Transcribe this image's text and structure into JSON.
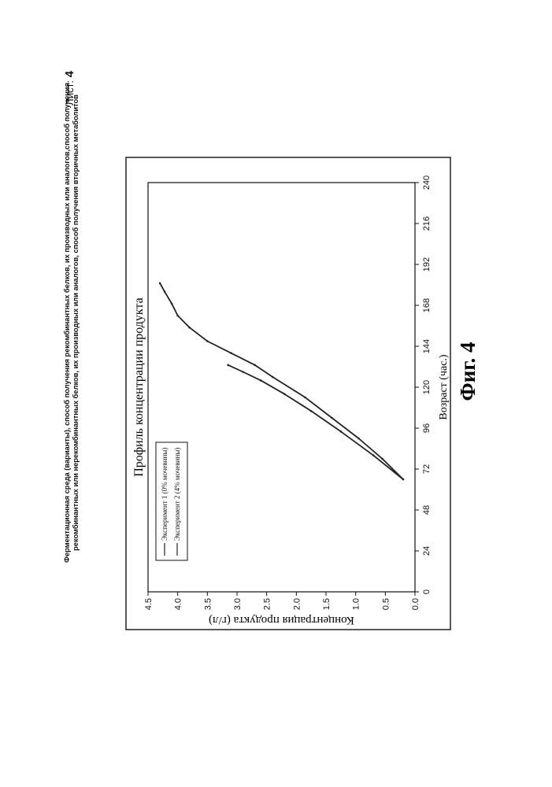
{
  "header": {
    "line1": "Ферментационная среда (варианты), способ получения рекомбинантных белков, их производных или аналогов,способ получения",
    "line2": "рекомбинантных или нерекомбинантных белков, их производных или аналогов, способ получения вторичных метаболитов",
    "sheet_label": "Лист:",
    "sheet_number": "4"
  },
  "figure_caption": "Фиг. 4",
  "chart_data": {
    "type": "line",
    "title": "Профиль концентрации продукта",
    "xlabel": "Возраст (час.)",
    "ylabel": "Концентрация продукта (г/л)",
    "xlim": [
      0,
      240
    ],
    "ylim": [
      0,
      4.5
    ],
    "x_ticks": [
      "0",
      "24",
      "48",
      "72",
      "96",
      "120",
      "144",
      "168",
      "192",
      "216",
      "240"
    ],
    "y_ticks": [
      "0.0",
      "0.5",
      "1.0",
      "1.5",
      "2.0",
      "2.5",
      "3.0",
      "3.5",
      "4.0",
      "4.5"
    ],
    "grid": false,
    "legend_position": "bottom-left",
    "series": [
      {
        "name": "Эксперимент 1 (0% мочевины)",
        "color": "#222222",
        "points": [
          [
            66,
            0.2
          ],
          [
            78,
            0.55
          ],
          [
            90,
            0.95
          ],
          [
            102,
            1.4
          ],
          [
            114,
            1.85
          ],
          [
            126,
            2.4
          ],
          [
            133,
            2.7
          ],
          [
            140,
            3.1
          ],
          [
            147,
            3.5
          ],
          [
            155,
            3.8
          ],
          [
            162,
            4.0
          ],
          [
            169,
            4.1
          ],
          [
            176,
            4.22
          ],
          [
            181,
            4.3
          ]
        ]
      },
      {
        "name": "Эксперимент 2 (4% мочевины)",
        "color": "#222222",
        "points": [
          [
            66,
            0.2
          ],
          [
            80,
            0.7
          ],
          [
            94,
            1.25
          ],
          [
            106,
            1.75
          ],
          [
            116,
            2.2
          ],
          [
            124,
            2.6
          ],
          [
            129,
            2.9
          ],
          [
            133,
            3.15
          ]
        ]
      }
    ]
  }
}
